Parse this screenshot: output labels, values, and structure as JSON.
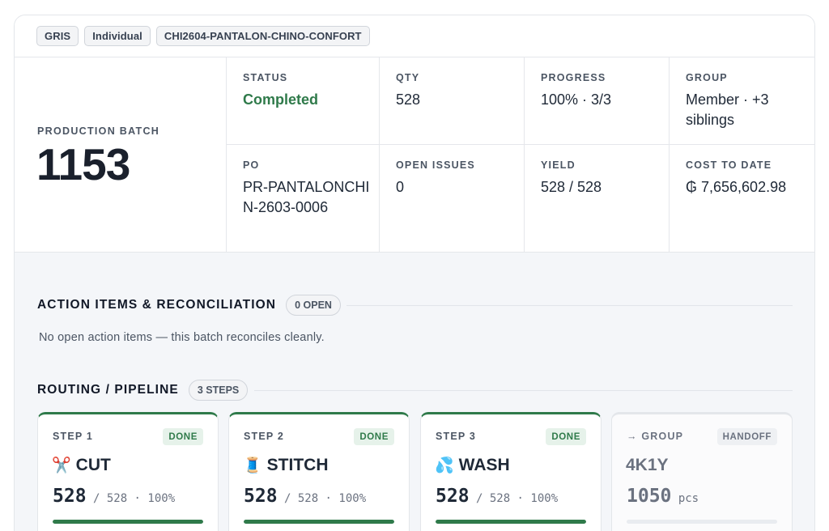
{
  "tags": [
    "GRIS",
    "Individual",
    "CHI2604-PANTALON-CHINO-CONFORT"
  ],
  "batch": {
    "label": "PRODUCTION BATCH",
    "number": "1153"
  },
  "summary": {
    "status": {
      "label": "STATUS",
      "value": "Completed"
    },
    "qty": {
      "label": "QTY",
      "value": "528"
    },
    "progress": {
      "label": "PROGRESS",
      "value": "100% · 3/3"
    },
    "group": {
      "label": "GROUP",
      "value": "Member · +3 siblings"
    },
    "po": {
      "label": "PO",
      "value": "PR-PANTALONCHIN-2603-0006"
    },
    "open_issues": {
      "label": "OPEN ISSUES",
      "value": "0"
    },
    "yield": {
      "label": "YIELD",
      "value": "528 / 528"
    },
    "cost": {
      "label": "COST TO DATE",
      "value": "₲ 7,656,602.98"
    }
  },
  "action_items": {
    "title": "ACTION ITEMS & RECONCILIATION",
    "count": "0 OPEN",
    "message": "No open action items — this batch reconciles cleanly."
  },
  "routing": {
    "title": "ROUTING / PIPELINE",
    "count": "3 STEPS",
    "steps": [
      {
        "label": "STEP 1",
        "badge": "DONE",
        "icon": "✂️",
        "icon_name": "scissors-icon",
        "name": "CUT",
        "done": "528",
        "total": " / 528 · 100%",
        "progress": 1.0
      },
      {
        "label": "STEP 2",
        "badge": "DONE",
        "icon": "🧵",
        "icon_name": "thread-spool-icon",
        "name": "STITCH",
        "done": "528",
        "total": " / 528 · 100%",
        "progress": 1.0
      },
      {
        "label": "STEP 3",
        "badge": "DONE",
        "icon": "💦",
        "icon_name": "water-droplets-icon",
        "name": "WASH",
        "done": "528",
        "total": " / 528 · 100%",
        "progress": 1.0
      }
    ],
    "group_card": {
      "label": "→ GROUP",
      "badge": "HANDOFF",
      "name": "4K1Y",
      "count": "1050",
      "unit": " pcs",
      "progress": 0.0
    }
  },
  "colors": {
    "accent_green": "#2f7a4a",
    "done_badge_bg": "#e6f2ea"
  }
}
